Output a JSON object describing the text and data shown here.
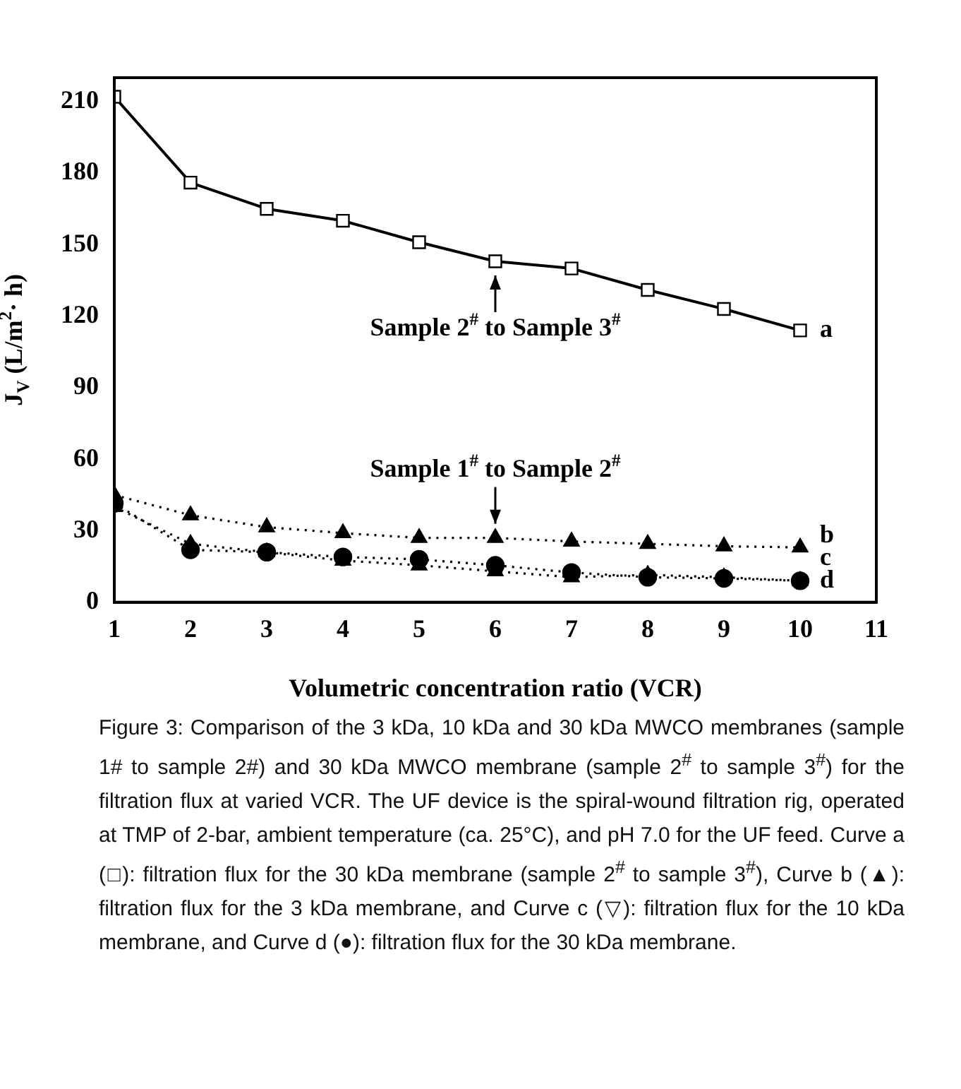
{
  "chart_data": {
    "type": "line",
    "xlabel": "Volumetric concentration ratio (VCR)",
    "ylabel": "J$_{V}$ (L/m$^{2}$· h)",
    "x": [
      1,
      2,
      3,
      4,
      5,
      6,
      7,
      8,
      9,
      10
    ],
    "series": [
      {
        "name": "a",
        "color": "#000000",
        "marker": "square",
        "line_style": "solid",
        "values": [
          212,
          176,
          165,
          160,
          151,
          143,
          140,
          131,
          123,
          114
        ]
      },
      {
        "name": "b",
        "color": "#000000",
        "marker": "triangle",
        "line_style": "dotted",
        "values": [
          45,
          36.5,
          31.5,
          29,
          27,
          27,
          25.5,
          24.5,
          23.5,
          23
        ]
      },
      {
        "name": "c",
        "color": "#000000",
        "marker": "triangle",
        "line_style": "dotted",
        "values": [
          40,
          24.5,
          21,
          17.5,
          15.5,
          13,
          10.5,
          11.5,
          10.5,
          9
        ]
      },
      {
        "name": "d",
        "color": "#000000",
        "marker": "circle",
        "line_style": "dotted",
        "values": [
          41.5,
          22,
          21,
          19,
          18,
          15.5,
          12.5,
          10.5,
          10,
          9
        ]
      }
    ],
    "xlim": [
      1,
      11
    ],
    "xticks": [
      1,
      2,
      3,
      4,
      5,
      6,
      7,
      8,
      9,
      10,
      11
    ],
    "ylim": [
      0,
      220
    ],
    "yticks": [
      0,
      30,
      60,
      90,
      120,
      150,
      180,
      210
    ],
    "grid": false,
    "legend": false,
    "annotations": [
      {
        "text": "Sample 2$^{#}$ to Sample 3$^{#}$",
        "x": 6,
        "y": 143
      },
      {
        "text": "Sample 1$^{#}$ to Sample 2$^{#}$",
        "x": 6,
        "y": 27
      },
      "Figure 3: Comparison of the 3 kDa, 10 kDa and 30 kDa MWCO membranes (sample 1# to sample 2#)  and 30 kDa MWCO membrane (sample 2$^{#}$ to sample 3$^{#}$) for the filtration flux at varied VCR. The UF device is the spiral-wound filtration rig, operated at TMP of 2-bar, ambient temperature (ca. 25°C), and pH 7.0 for the UF feed. Curve a (□): filtration flux for the 30 kDa membrane (sample 2$^{#}$ to sample 3$^{#}$), Curve b (▲): filtration flux for the 3 kDa membrane, and Curve c (▽): filtration flux for the 10 kDa membrane, and Curve d (●): filtration flux for the 30 kDa membrane."
    ]
  }
}
